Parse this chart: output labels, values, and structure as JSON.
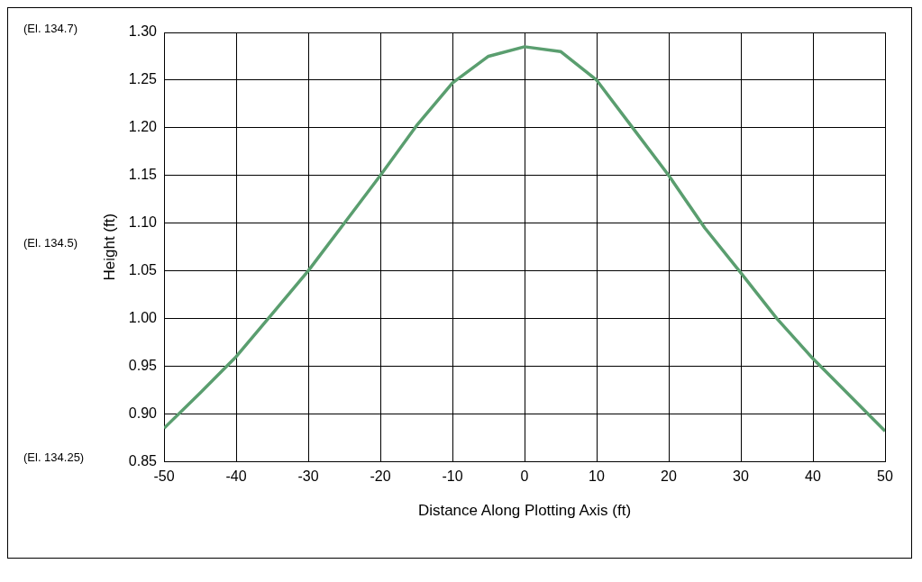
{
  "chart_data": {
    "type": "line",
    "xlabel": "Distance Along Plotting Axis (ft)",
    "ylabel": "Height (ft)",
    "x": [
      -50,
      -45,
      -40,
      -35,
      -30,
      -25,
      -20,
      -15,
      -10,
      -5,
      0,
      5,
      10,
      15,
      20,
      25,
      30,
      35,
      40,
      45,
      50
    ],
    "series": [
      {
        "color": "#5a9e6f",
        "values": [
          0.885,
          0.922,
          0.96,
          1.005,
          1.05,
          1.1,
          1.15,
          1.202,
          1.247,
          1.275,
          1.285,
          1.28,
          1.25,
          1.2,
          1.15,
          1.095,
          1.048,
          1.0,
          0.958,
          0.92,
          0.882
        ]
      }
    ],
    "xlim": [
      -50,
      50
    ],
    "xticks": [
      -50,
      -40,
      -30,
      -20,
      -10,
      0,
      10,
      20,
      30,
      40,
      50
    ],
    "ylim": [
      0.85,
      1.3
    ],
    "yticks": [
      {
        "value": 0.85,
        "label": "0.85"
      },
      {
        "value": 0.9,
        "label": "0.90"
      },
      {
        "value": 0.95,
        "label": "0.95"
      },
      {
        "value": 1.0,
        "label": "1.00"
      },
      {
        "value": 1.05,
        "label": "1.05"
      },
      {
        "value": 1.1,
        "label": "1.10"
      },
      {
        "value": 1.15,
        "label": "1.15"
      },
      {
        "value": 1.2,
        "label": "1.20"
      },
      {
        "value": 1.25,
        "label": "1.25"
      },
      {
        "value": 1.3,
        "label": "1.30"
      }
    ],
    "grid": true,
    "legend": false,
    "marker": "none",
    "line_style": "solid",
    "annotations": [
      "(El. 134.7)",
      "(El. 134.5)",
      "(El. 134.25)"
    ]
  }
}
